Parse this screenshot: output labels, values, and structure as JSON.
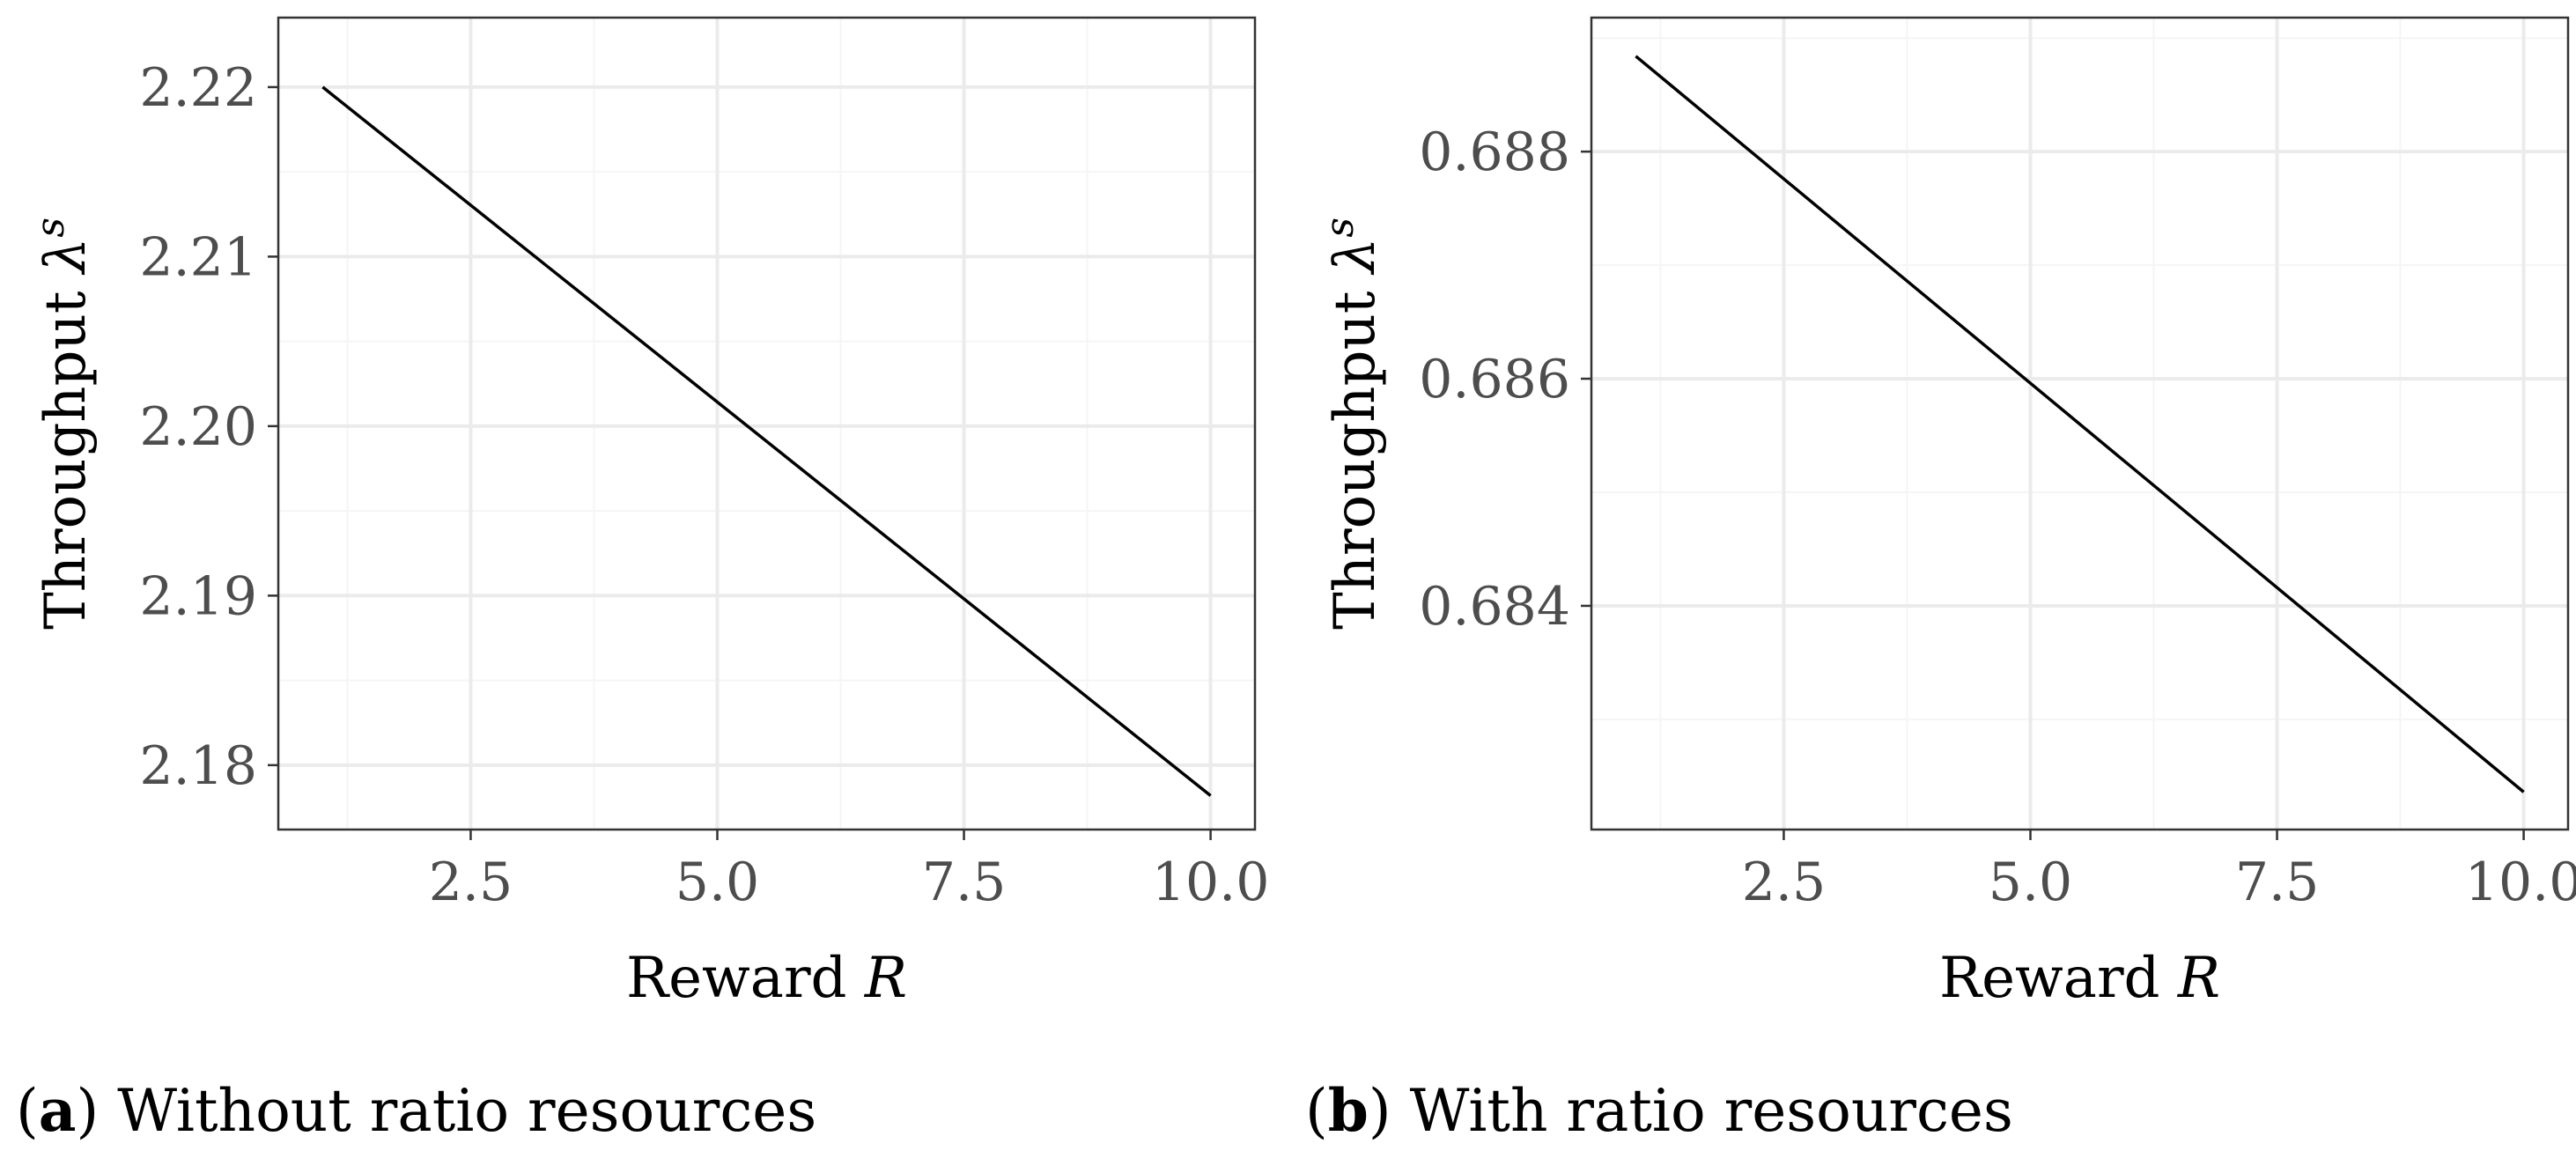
{
  "colors": {
    "panel_border": "#333333",
    "grid_major": "#ebebeb",
    "grid_minor": "#f5f5f5",
    "line": "#000000",
    "tick_text": "#4d4d4d"
  },
  "chart_data": [
    {
      "type": "line",
      "caption_letter": "a",
      "caption_text": "Without ratio resources",
      "xlabel": "Reward",
      "xlabel_var": "R",
      "ylabel": "Throughput",
      "ylabel_var": "λ",
      "ylabel_sup": "s",
      "xlim": [
        0.55,
        10.45
      ],
      "ylim": [
        2.1762,
        2.2241
      ],
      "xticks": [
        2.5,
        5.0,
        7.5,
        10.0
      ],
      "xtick_labels": [
        "2.5",
        "5.0",
        "7.5",
        "10.0"
      ],
      "x_minor": [
        1.25,
        3.75,
        6.25,
        8.75
      ],
      "yticks": [
        2.18,
        2.19,
        2.2,
        2.21,
        2.22
      ],
      "ytick_labels": [
        "2.18",
        "2.19",
        "2.20",
        "2.21",
        "2.22"
      ],
      "y_minor": [
        2.185,
        2.195,
        2.205,
        2.215
      ],
      "grid": true,
      "series": [
        {
          "name": "throughput",
          "x": [
            1.0,
            10.0
          ],
          "y": [
            2.22,
            2.1782
          ]
        }
      ]
    },
    {
      "type": "line",
      "caption_letter": "b",
      "caption_text": "With ratio resources",
      "xlabel": "Reward",
      "xlabel_var": "R",
      "ylabel": "Throughput",
      "ylabel_var": "λ",
      "ylabel_sup": "s",
      "xlim": [
        0.55,
        10.45
      ],
      "ylim": [
        0.68203,
        0.68918
      ],
      "xticks": [
        2.5,
        5.0,
        7.5,
        10.0
      ],
      "xtick_labels": [
        "2.5",
        "5.0",
        "7.5",
        "10.0"
      ],
      "x_minor": [
        1.25,
        3.75,
        6.25,
        8.75
      ],
      "yticks": [
        0.684,
        0.686,
        0.688
      ],
      "ytick_labels": [
        "0.684",
        "0.686",
        "0.688"
      ],
      "y_minor": [
        0.683,
        0.685,
        0.687,
        0.689
      ],
      "grid": true,
      "series": [
        {
          "name": "throughput",
          "x": [
            1.0,
            10.0
          ],
          "y": [
            0.68884,
            0.68236
          ]
        }
      ]
    }
  ]
}
